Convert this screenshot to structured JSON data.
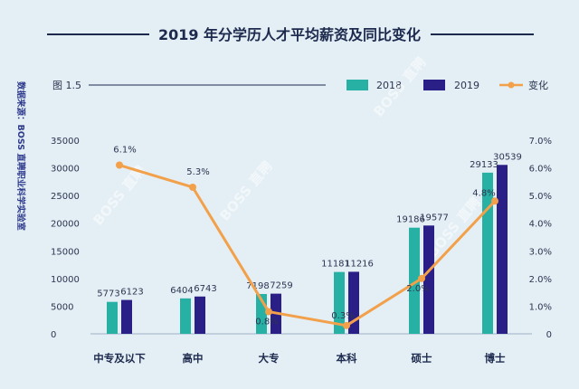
{
  "figure_label": "图 1.5",
  "source_text": "数据来源：BOSS 直聘职业科学实验室",
  "watermark_text": "BOSS 直聘",
  "colors": {
    "bar2018": "#27b0a4",
    "bar2019": "#2a1f86",
    "line": "#f2a14a",
    "title_rule": "#1d2a4d"
  },
  "chart_data": {
    "type": "bar",
    "title": "2019 年分学历人才平均薪资及同比变化",
    "categories": [
      "中专及以下",
      "高中",
      "大专",
      "本科",
      "硕士",
      "博士"
    ],
    "series": [
      {
        "name": "2018",
        "values": [
          5773,
          6404,
          7198,
          11181,
          19186,
          29133
        ]
      },
      {
        "name": "2019",
        "values": [
          6123,
          6743,
          7259,
          11216,
          19577,
          30539
        ]
      }
    ],
    "line_series": {
      "name": "变化",
      "values": [
        6.1,
        5.3,
        0.8,
        0.3,
        2.0,
        4.8
      ],
      "labels": [
        "6.1%",
        "5.3%",
        "0.8%",
        "0.3%",
        "2.0%",
        "4.8%"
      ]
    },
    "y_left": {
      "ticks": [
        0,
        5000,
        10000,
        15000,
        20000,
        25000,
        30000,
        35000
      ],
      "labels": [
        "0",
        "5000",
        "10000",
        "15000",
        "20000",
        "25000",
        "30000",
        "35000"
      ],
      "ylim": [
        0,
        35000
      ]
    },
    "y_right": {
      "ticks": [
        0,
        1,
        2,
        3,
        4,
        5,
        6,
        7
      ],
      "labels": [
        "0",
        "1.0%",
        "2.0%",
        "3.0%",
        "4.0%",
        "5.0%",
        "6.0%",
        "7.0%"
      ],
      "ylim": [
        0,
        7
      ]
    },
    "legend_position": "top-right",
    "grid": false
  }
}
